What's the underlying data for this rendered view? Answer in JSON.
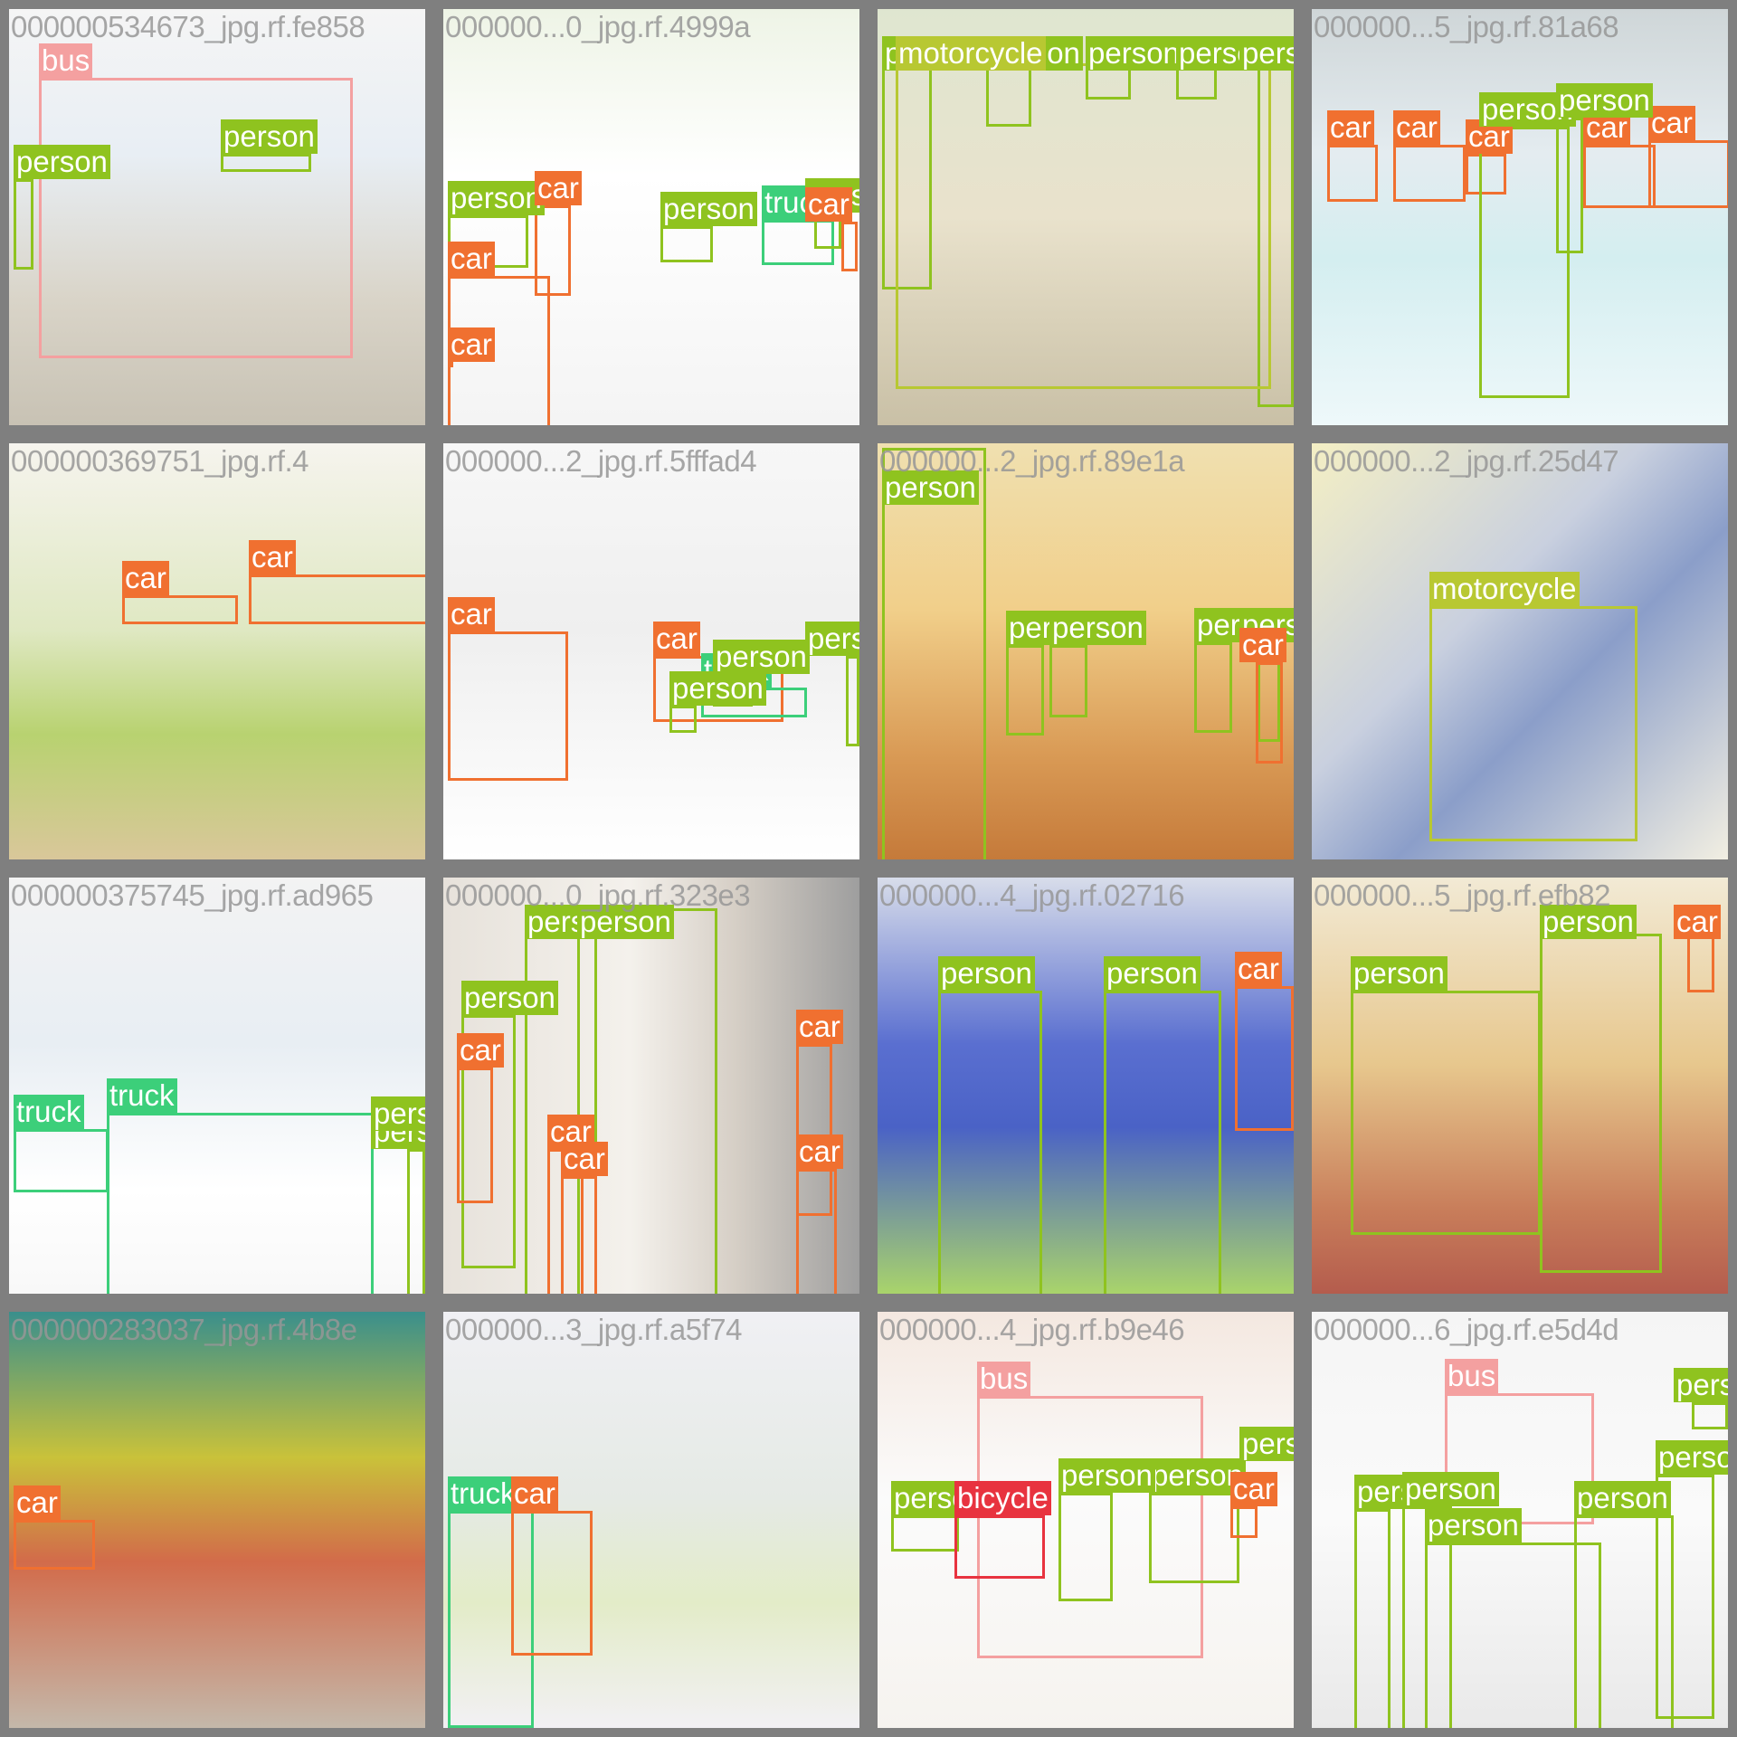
{
  "class_colors": {
    "person": "#8fc31f",
    "car": "#f07030",
    "truck": "#3ccf7a",
    "bus": "#f4a0a0",
    "motorcycle": "#b8c832",
    "bicycle": "#e8333f"
  },
  "tiles": [
    {
      "filename": "000000534673_jpg.rf.fe858",
      "objects": [
        {
          "label": "bus"
        },
        {
          "label": "person"
        },
        {
          "label": "person"
        }
      ]
    },
    {
      "filename": "000000...0_jpg.rf.4999a",
      "objects": [
        {
          "label": "person"
        },
        {
          "label": "car"
        },
        {
          "label": "car"
        },
        {
          "label": "person"
        },
        {
          "label": "car"
        },
        {
          "label": "truck"
        },
        {
          "label": "person"
        },
        {
          "label": "car"
        }
      ]
    },
    {
      "filename": "",
      "objects": [
        {
          "label": "person"
        },
        {
          "label": "person"
        },
        {
          "label": "person"
        },
        {
          "label": "person"
        },
        {
          "label": "person"
        },
        {
          "label": "motorcycle"
        }
      ]
    },
    {
      "filename": "000000...5_jpg.rf.81a68",
      "objects": [
        {
          "label": "car"
        },
        {
          "label": "car"
        },
        {
          "label": "car"
        },
        {
          "label": "car"
        },
        {
          "label": "car"
        },
        {
          "label": "person"
        },
        {
          "label": "person"
        }
      ]
    },
    {
      "filename": "000000369751_jpg.rf.4",
      "objects": [
        {
          "label": "car"
        },
        {
          "label": "car"
        }
      ]
    },
    {
      "filename": "000000...2_jpg.rf.5fffad4",
      "objects": [
        {
          "label": "car"
        },
        {
          "label": "car"
        },
        {
          "label": "truck"
        },
        {
          "label": "person"
        },
        {
          "label": "person"
        },
        {
          "label": "person"
        }
      ]
    },
    {
      "filename": "000000...2_jpg.rf.89e1a",
      "objects": [
        {
          "label": "person"
        },
        {
          "label": "person"
        },
        {
          "label": "person"
        },
        {
          "label": "person"
        },
        {
          "label": "person"
        },
        {
          "label": "car"
        }
      ]
    },
    {
      "filename": "000000...2_jpg.rf.25d47",
      "objects": [
        {
          "label": "motorcycle"
        }
      ]
    },
    {
      "filename": "000000375745_jpg.rf.ad965",
      "objects": [
        {
          "label": "truck"
        },
        {
          "label": "truck"
        },
        {
          "label": "person"
        },
        {
          "label": "person"
        }
      ]
    },
    {
      "filename": "000000...0_jpg.rf.323e3",
      "objects": [
        {
          "label": "person"
        },
        {
          "label": "person"
        },
        {
          "label": "person"
        },
        {
          "label": "car"
        },
        {
          "label": "car"
        },
        {
          "label": "car"
        },
        {
          "label": "car"
        },
        {
          "label": "car"
        }
      ]
    },
    {
      "filename": "000000...4_jpg.rf.02716",
      "objects": [
        {
          "label": "person"
        },
        {
          "label": "person"
        },
        {
          "label": "car"
        }
      ]
    },
    {
      "filename": "000000...5_jpg.rf.efb82",
      "objects": [
        {
          "label": "person"
        },
        {
          "label": "person"
        },
        {
          "label": "car"
        }
      ]
    },
    {
      "filename": "000000283037_jpg.rf.4b8e",
      "objects": [
        {
          "label": "car"
        }
      ]
    },
    {
      "filename": "000000...3_jpg.rf.a5f74",
      "objects": [
        {
          "label": "truck"
        },
        {
          "label": "car"
        }
      ]
    },
    {
      "filename": "000000...4_jpg.rf.b9e46",
      "objects": [
        {
          "label": "bus"
        },
        {
          "label": "person"
        },
        {
          "label": "person"
        },
        {
          "label": "car"
        },
        {
          "label": "person"
        },
        {
          "label": "bicycle"
        },
        {
          "label": "person"
        }
      ]
    },
    {
      "filename": "000000...6_jpg.rf.e5d4d",
      "objects": [
        {
          "label": "bus"
        },
        {
          "label": "person"
        },
        {
          "label": "person"
        },
        {
          "label": "person"
        },
        {
          "label": "person"
        },
        {
          "label": "person"
        },
        {
          "label": "person"
        }
      ]
    }
  ]
}
